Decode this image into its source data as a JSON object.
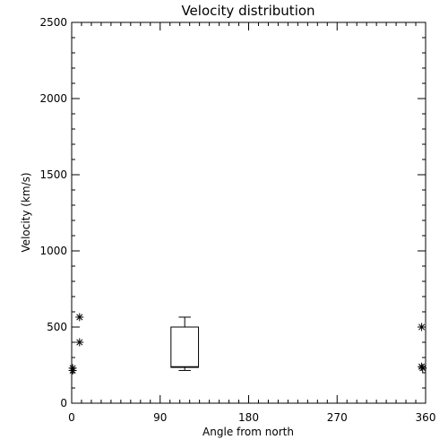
{
  "chart_data": {
    "type": "scatter",
    "title": "Velocity distribution",
    "xlabel": "Angle from north",
    "ylabel": "Velocity (km/s)",
    "xlim": [
      0,
      360
    ],
    "ylim": [
      0,
      2500
    ],
    "xticks": [
      0,
      90,
      180,
      270,
      360
    ],
    "yticks": [
      0,
      500,
      1000,
      1500,
      2000,
      2500
    ],
    "grid": false,
    "points": [
      {
        "x": 1,
        "y": 230
      },
      {
        "x": 1,
        "y": 215
      },
      {
        "x": 8,
        "y": 565
      },
      {
        "x": 8,
        "y": 400
      },
      {
        "x": 356,
        "y": 500
      },
      {
        "x": 356,
        "y": 240
      },
      {
        "x": 357,
        "y": 230
      }
    ],
    "boxplot": {
      "x_center": 115,
      "x_width": 28,
      "whisker_low": 215,
      "q1": 235,
      "median": 240,
      "q3": 500,
      "whisker_high": 565
    }
  }
}
